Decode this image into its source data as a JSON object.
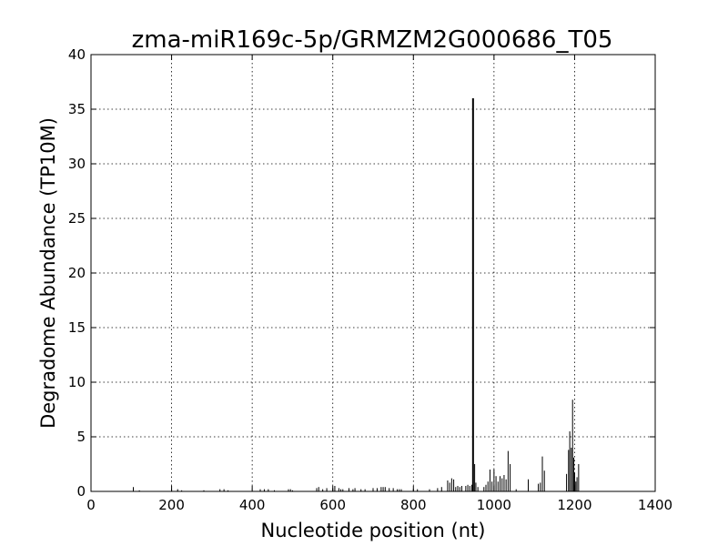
{
  "chart_data": {
    "type": "bar",
    "title": "zma-miR169c-5p/GRMZM2G000686_T05",
    "xlabel": "Nucleotide position (nt)",
    "ylabel": "Degradome Abundance (TP10M)",
    "xlim": [
      0,
      1400
    ],
    "ylim": [
      0,
      40
    ],
    "xticks": [
      0,
      200,
      400,
      600,
      800,
      1000,
      1200,
      1400
    ],
    "yticks": [
      0,
      5,
      10,
      15,
      20,
      25,
      30,
      35,
      40
    ],
    "xtick_labels": [
      "0",
      "200",
      "400",
      "600",
      "800",
      "1000",
      "1200",
      "1400"
    ],
    "ytick_labels": [
      "0",
      "5",
      "10",
      "15",
      "20",
      "25",
      "30",
      "35",
      "40"
    ],
    "grid": true,
    "highlight_color": "#ff0000",
    "bar_color": "#000000",
    "highlight": {
      "x": 948,
      "y": 36
    },
    "series": [
      {
        "x": [
          105,
          120,
          200,
          215,
          225,
          280,
          320,
          330,
          340,
          420,
          430,
          440,
          455,
          490,
          495,
          500,
          560,
          565,
          575,
          585,
          600,
          605,
          615,
          620,
          625,
          640,
          650,
          655,
          670,
          680,
          700,
          710,
          720,
          725,
          730,
          740,
          750,
          760,
          765,
          770,
          800,
          810,
          840,
          860,
          870,
          885,
          890,
          895,
          900,
          905,
          910,
          915,
          920,
          930,
          935,
          940,
          945,
          952,
          955,
          960,
          975,
          980,
          985,
          990,
          995,
          1000,
          1005,
          1010,
          1015,
          1020,
          1025,
          1030,
          1035,
          1040,
          1055,
          1085,
          1110,
          1115,
          1120,
          1125,
          1180,
          1185,
          1188,
          1192,
          1195,
          1198,
          1200,
          1203,
          1206,
          1210
        ],
        "values": [
          0.4,
          0.1,
          0.2,
          0.2,
          0.1,
          0.1,
          0.2,
          0.2,
          0.1,
          0.2,
          0.2,
          0.2,
          0.1,
          0.2,
          0.2,
          0.1,
          0.3,
          0.4,
          0.2,
          0.3,
          0.3,
          0.5,
          0.3,
          0.2,
          0.2,
          0.3,
          0.2,
          0.3,
          0.2,
          0.2,
          0.3,
          0.3,
          0.4,
          0.4,
          0.4,
          0.3,
          0.3,
          0.2,
          0.2,
          0.2,
          0.2,
          0.2,
          0.2,
          0.3,
          0.4,
          1.0,
          0.8,
          1.2,
          1.1,
          0.4,
          0.5,
          0.4,
          0.5,
          0.5,
          0.6,
          0.5,
          0.6,
          2.5,
          0.8,
          0.4,
          0.4,
          0.6,
          0.9,
          2.0,
          0.9,
          2.0,
          1.4,
          0.9,
          1.4,
          1.2,
          1.5,
          1.1,
          3.7,
          2.5,
          0.2,
          1.1,
          0.7,
          0.8,
          3.2,
          1.9,
          1.6,
          3.8,
          5.5,
          4.0,
          8.4,
          3.1,
          1.7,
          0.9,
          1.3,
          2.5
        ]
      }
    ]
  }
}
